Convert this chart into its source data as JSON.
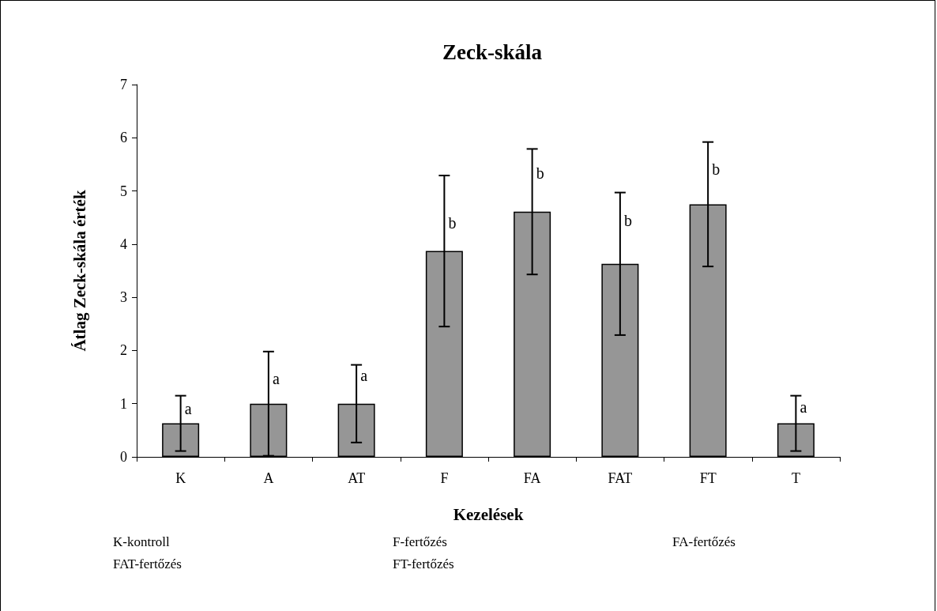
{
  "chart_data": {
    "type": "bar",
    "title": "Zeck-skála",
    "xlabel": "Kezelések",
    "ylabel": "Átlag Zeck-skála érték",
    "categories": [
      "K",
      "A",
      "AT",
      "F",
      "FA",
      "FAT",
      "FT",
      "T"
    ],
    "values": [
      0.63,
      1.0,
      1.0,
      3.87,
      4.61,
      3.63,
      4.75,
      0.63
    ],
    "errors": [
      0.52,
      0.98,
      0.73,
      1.42,
      1.18,
      1.34,
      1.17,
      0.52
    ],
    "color": "#969696",
    "ylim": [
      0,
      7
    ],
    "yticks": [
      0,
      1,
      2,
      3,
      4,
      5,
      6,
      7
    ],
    "grid": false,
    "annotations": [
      {
        "text": "a",
        "x": "K",
        "y": 0.9
      },
      {
        "text": "a",
        "x": "A",
        "y": 1.47
      },
      {
        "text": "a",
        "x": "AT",
        "y": 1.53
      },
      {
        "text": "b",
        "x": "F",
        "y": 4.4
      },
      {
        "text": "b",
        "x": "FA",
        "y": 5.33
      },
      {
        "text": "b",
        "x": "FAT",
        "y": 4.44
      },
      {
        "text": "b",
        "x": "FT",
        "y": 5.41
      },
      {
        "text": "a",
        "x": "T",
        "y": 0.93
      },
      "K-kontroll",
      "F-fertőzés",
      "FA-fertőzés",
      "FAT-fertőzés",
      "FT-fertőzés"
    ]
  }
}
